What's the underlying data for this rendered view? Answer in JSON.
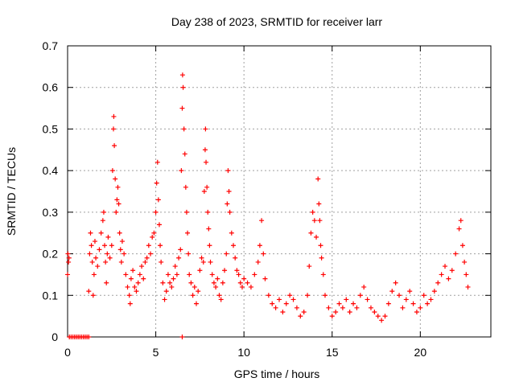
{
  "chart_data": {
    "type": "scatter",
    "title": "Day 238 of 2023, SRMTID for receiver larr",
    "xlabel": "GPS time / hours",
    "ylabel": "SRMTID / TECUs",
    "xlim": [
      0,
      24
    ],
    "ylim": [
      0,
      0.7
    ],
    "x_ticks": [
      0,
      5,
      10,
      15,
      20
    ],
    "y_ticks": [
      0,
      0.1,
      0.2,
      0.3,
      0.4,
      0.5,
      0.6,
      0.7
    ],
    "grid": true,
    "marker": "plus",
    "series_color": "#ff0000",
    "series": [
      {
        "name": "SRMTID",
        "points": [
          [
            0.0,
            0.15
          ],
          [
            0.02,
            0.2
          ],
          [
            0.05,
            0.18
          ],
          [
            0.08,
            0.19
          ],
          [
            0.1,
            0.0
          ],
          [
            0.2,
            0.0
          ],
          [
            0.3,
            0.0
          ],
          [
            0.4,
            0.0
          ],
          [
            0.5,
            0.0
          ],
          [
            0.6,
            0.0
          ],
          [
            0.7,
            0.0
          ],
          [
            0.8,
            0.0
          ],
          [
            0.9,
            0.0
          ],
          [
            1.0,
            0.0
          ],
          [
            1.1,
            0.0
          ],
          [
            1.2,
            0.0
          ],
          [
            1.2,
            0.11
          ],
          [
            1.25,
            0.2
          ],
          [
            1.3,
            0.25
          ],
          [
            1.35,
            0.22
          ],
          [
            1.4,
            0.18
          ],
          [
            1.45,
            0.1
          ],
          [
            1.5,
            0.15
          ],
          [
            1.55,
            0.23
          ],
          [
            1.6,
            0.19
          ],
          [
            1.7,
            0.17
          ],
          [
            1.8,
            0.21
          ],
          [
            1.9,
            0.25
          ],
          [
            2.0,
            0.28
          ],
          [
            2.05,
            0.3
          ],
          [
            2.1,
            0.22
          ],
          [
            2.15,
            0.18
          ],
          [
            2.2,
            0.13
          ],
          [
            2.25,
            0.2
          ],
          [
            2.3,
            0.24
          ],
          [
            2.4,
            0.19
          ],
          [
            2.5,
            0.22
          ],
          [
            2.55,
            0.4
          ],
          [
            2.6,
            0.5
          ],
          [
            2.62,
            0.53
          ],
          [
            2.65,
            0.46
          ],
          [
            2.7,
            0.38
          ],
          [
            2.75,
            0.3
          ],
          [
            2.8,
            0.33
          ],
          [
            2.85,
            0.36
          ],
          [
            2.9,
            0.32
          ],
          [
            2.95,
            0.25
          ],
          [
            3.0,
            0.21
          ],
          [
            3.05,
            0.18
          ],
          [
            3.1,
            0.23
          ],
          [
            3.2,
            0.2
          ],
          [
            3.3,
            0.15
          ],
          [
            3.4,
            0.12
          ],
          [
            3.5,
            0.1
          ],
          [
            3.55,
            0.08
          ],
          [
            3.6,
            0.14
          ],
          [
            3.7,
            0.16
          ],
          [
            3.8,
            0.12
          ],
          [
            3.9,
            0.11
          ],
          [
            4.0,
            0.13
          ],
          [
            4.1,
            0.15
          ],
          [
            4.2,
            0.17
          ],
          [
            4.3,
            0.14
          ],
          [
            4.4,
            0.18
          ],
          [
            4.5,
            0.19
          ],
          [
            4.6,
            0.22
          ],
          [
            4.7,
            0.2
          ],
          [
            4.8,
            0.24
          ],
          [
            4.9,
            0.25
          ],
          [
            5.0,
            0.3
          ],
          [
            5.05,
            0.37
          ],
          [
            5.1,
            0.42
          ],
          [
            5.15,
            0.33
          ],
          [
            5.2,
            0.27
          ],
          [
            5.25,
            0.22
          ],
          [
            5.3,
            0.18
          ],
          [
            5.4,
            0.13
          ],
          [
            5.5,
            0.09
          ],
          [
            5.6,
            0.11
          ],
          [
            5.7,
            0.15
          ],
          [
            5.8,
            0.13
          ],
          [
            5.9,
            0.12
          ],
          [
            6.0,
            0.14
          ],
          [
            6.1,
            0.17
          ],
          [
            6.2,
            0.15
          ],
          [
            6.3,
            0.19
          ],
          [
            6.4,
            0.21
          ],
          [
            6.45,
            0.4
          ],
          [
            6.5,
            0.55
          ],
          [
            6.52,
            0.63
          ],
          [
            6.55,
            0.6
          ],
          [
            6.6,
            0.5
          ],
          [
            6.65,
            0.44
          ],
          [
            6.7,
            0.36
          ],
          [
            6.75,
            0.3
          ],
          [
            6.8,
            0.25
          ],
          [
            6.5,
            0.0
          ],
          [
            6.85,
            0.2
          ],
          [
            6.9,
            0.15
          ],
          [
            7.0,
            0.13
          ],
          [
            7.1,
            0.1
          ],
          [
            7.2,
            0.12
          ],
          [
            7.3,
            0.08
          ],
          [
            7.4,
            0.11
          ],
          [
            7.5,
            0.16
          ],
          [
            7.6,
            0.19
          ],
          [
            7.7,
            0.18
          ],
          [
            7.75,
            0.35
          ],
          [
            7.8,
            0.45
          ],
          [
            7.82,
            0.5
          ],
          [
            7.85,
            0.42
          ],
          [
            7.9,
            0.36
          ],
          [
            7.95,
            0.3
          ],
          [
            8.0,
            0.26
          ],
          [
            8.05,
            0.22
          ],
          [
            8.1,
            0.18
          ],
          [
            8.2,
            0.15
          ],
          [
            8.3,
            0.13
          ],
          [
            8.4,
            0.12
          ],
          [
            8.5,
            0.14
          ],
          [
            8.6,
            0.1
          ],
          [
            8.7,
            0.09
          ],
          [
            8.8,
            0.13
          ],
          [
            8.9,
            0.16
          ],
          [
            9.0,
            0.2
          ],
          [
            9.05,
            0.32
          ],
          [
            9.1,
            0.4
          ],
          [
            9.15,
            0.35
          ],
          [
            9.2,
            0.3
          ],
          [
            9.3,
            0.25
          ],
          [
            9.4,
            0.22
          ],
          [
            9.5,
            0.19
          ],
          [
            9.6,
            0.16
          ],
          [
            9.7,
            0.15
          ],
          [
            9.8,
            0.13
          ],
          [
            9.9,
            0.12
          ],
          [
            10.0,
            0.14
          ],
          [
            10.2,
            0.13
          ],
          [
            10.4,
            0.12
          ],
          [
            10.6,
            0.15
          ],
          [
            10.8,
            0.18
          ],
          [
            10.9,
            0.22
          ],
          [
            11.0,
            0.28
          ],
          [
            11.1,
            0.2
          ],
          [
            11.2,
            0.14
          ],
          [
            11.4,
            0.1
          ],
          [
            11.6,
            0.08
          ],
          [
            11.8,
            0.07
          ],
          [
            12.0,
            0.09
          ],
          [
            12.2,
            0.06
          ],
          [
            12.4,
            0.08
          ],
          [
            12.6,
            0.1
          ],
          [
            12.8,
            0.09
          ],
          [
            13.0,
            0.07
          ],
          [
            13.2,
            0.05
          ],
          [
            13.4,
            0.06
          ],
          [
            13.6,
            0.1
          ],
          [
            13.7,
            0.17
          ],
          [
            13.8,
            0.25
          ],
          [
            13.9,
            0.3
          ],
          [
            14.0,
            0.28
          ],
          [
            14.1,
            0.24
          ],
          [
            14.2,
            0.38
          ],
          [
            14.25,
            0.32
          ],
          [
            14.3,
            0.28
          ],
          [
            14.35,
            0.22
          ],
          [
            14.4,
            0.19
          ],
          [
            14.5,
            0.15
          ],
          [
            14.6,
            0.1
          ],
          [
            14.8,
            0.07
          ],
          [
            15.0,
            0.05
          ],
          [
            15.2,
            0.06
          ],
          [
            15.4,
            0.08
          ],
          [
            15.6,
            0.07
          ],
          [
            15.8,
            0.09
          ],
          [
            16.0,
            0.06
          ],
          [
            16.2,
            0.08
          ],
          [
            16.4,
            0.07
          ],
          [
            16.6,
            0.1
          ],
          [
            16.8,
            0.12
          ],
          [
            17.0,
            0.09
          ],
          [
            17.2,
            0.07
          ],
          [
            17.4,
            0.06
          ],
          [
            17.6,
            0.05
          ],
          [
            17.8,
            0.04
          ],
          [
            18.0,
            0.05
          ],
          [
            18.2,
            0.08
          ],
          [
            18.4,
            0.11
          ],
          [
            18.6,
            0.13
          ],
          [
            18.8,
            0.1
          ],
          [
            19.0,
            0.07
          ],
          [
            19.2,
            0.09
          ],
          [
            19.4,
            0.11
          ],
          [
            19.6,
            0.08
          ],
          [
            19.8,
            0.06
          ],
          [
            20.0,
            0.07
          ],
          [
            20.2,
            0.1
          ],
          [
            20.4,
            0.08
          ],
          [
            20.6,
            0.09
          ],
          [
            20.8,
            0.11
          ],
          [
            21.0,
            0.13
          ],
          [
            21.2,
            0.15
          ],
          [
            21.4,
            0.17
          ],
          [
            21.6,
            0.14
          ],
          [
            21.8,
            0.16
          ],
          [
            22.0,
            0.2
          ],
          [
            22.2,
            0.26
          ],
          [
            22.3,
            0.28
          ],
          [
            22.4,
            0.22
          ],
          [
            22.5,
            0.18
          ],
          [
            22.6,
            0.15
          ],
          [
            22.7,
            0.12
          ]
        ]
      }
    ]
  }
}
